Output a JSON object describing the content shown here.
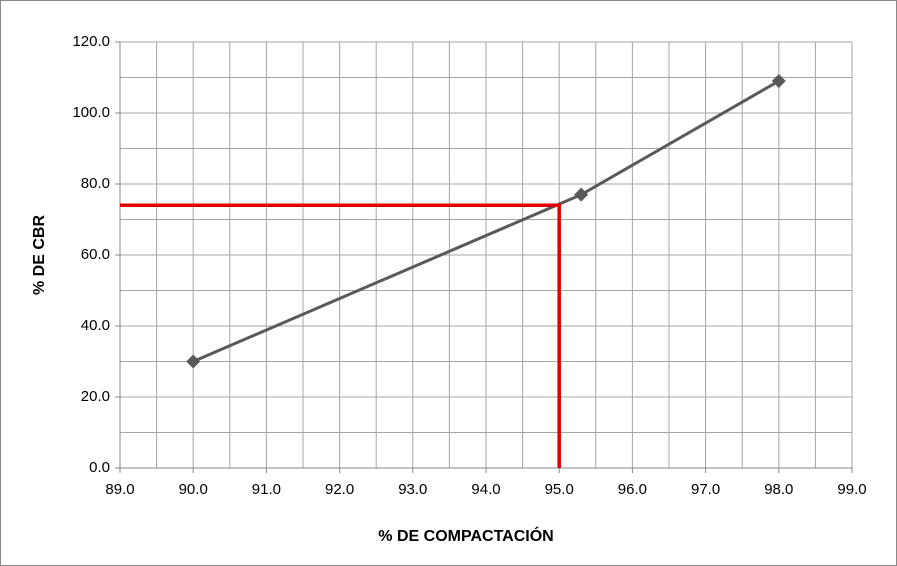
{
  "chart_data": {
    "type": "line",
    "x_label": "% DE COMPACTACIÓN",
    "y_label": "% DE CBR",
    "series": [
      {
        "x": [
          90,
          95.3,
          98
        ],
        "values": [
          30,
          77,
          109
        ],
        "color": "#595959"
      }
    ],
    "reference_lines": [
      {
        "x": [
          89,
          95,
          95
        ],
        "values": [
          74,
          74,
          0
        ],
        "color": "#e00000"
      }
    ],
    "xlim": [
      89,
      99
    ],
    "xticks": [
      {
        "value": 89,
        "label": "89.0"
      },
      {
        "value": 90,
        "label": "90.0"
      },
      {
        "value": 91,
        "label": "91.0"
      },
      {
        "value": 92,
        "label": "92.0"
      },
      {
        "value": 93,
        "label": "93.0"
      },
      {
        "value": 94,
        "label": "94.0"
      },
      {
        "value": 95,
        "label": "95.0"
      },
      {
        "value": 96,
        "label": "96.0"
      },
      {
        "value": 97,
        "label": "97.0"
      },
      {
        "value": 98,
        "label": "98.0"
      },
      {
        "value": 99,
        "label": "99.0"
      }
    ],
    "ylim": [
      0,
      120
    ],
    "yticks": [
      {
        "value": 0,
        "label": "0.0"
      },
      {
        "value": 20,
        "label": "20.0"
      },
      {
        "value": 40,
        "label": "40.0"
      },
      {
        "value": 60,
        "label": "60.0"
      },
      {
        "value": 80,
        "label": "80.0"
      },
      {
        "value": 100,
        "label": "100.0"
      },
      {
        "value": 120,
        "label": "120.0"
      }
    ],
    "x_gridlines": [
      89,
      89.5,
      90,
      90.5,
      91,
      91.5,
      92,
      92.5,
      93,
      93.5,
      94,
      94.5,
      95,
      95.5,
      96,
      96.5,
      97,
      97.5,
      98,
      98.5,
      99
    ],
    "y_gridlines": [
      0,
      10,
      20,
      30,
      40,
      50,
      60,
      70,
      80,
      90,
      100,
      110,
      120
    ],
    "grid": true
  }
}
